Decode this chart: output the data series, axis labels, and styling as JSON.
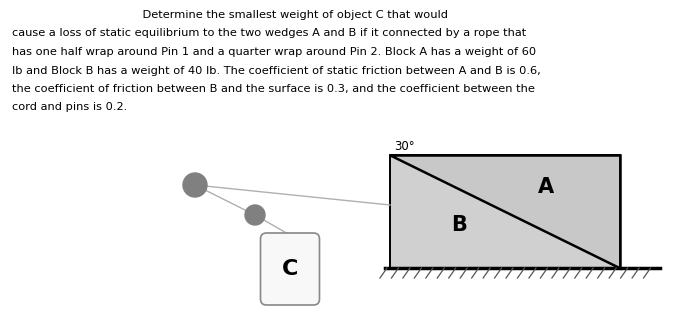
{
  "bg_color": "#ffffff",
  "text_color": "#000000",
  "problem_lines": [
    "                                    Determine the smallest weight of object C that would",
    "cause a loss of static equilibrium to the two wedges A and B if it connected by a rope that",
    "has one half wrap around Pin 1 and a quarter wrap around Pin 2. Block A has a weight of 60",
    "lb and Block B has a weight of 40 lb. The coefficient of static friction between A and B is 0.6,",
    "the coefficient of friction between B and the surface is 0.3, and the coefficient between the",
    "cord and pins is 0.2."
  ],
  "wedge_color_B": "#d0d0d0",
  "wedge_color_A": "#c8c8c8",
  "angle_label": "30°",
  "label_A": "A",
  "label_B": "B",
  "label_C": "C",
  "pin_color": "#808080",
  "rope_color": "#b0b0b0",
  "hatch_color": "#555555",
  "font_size_problem": 8.2,
  "font_size_label": 13
}
